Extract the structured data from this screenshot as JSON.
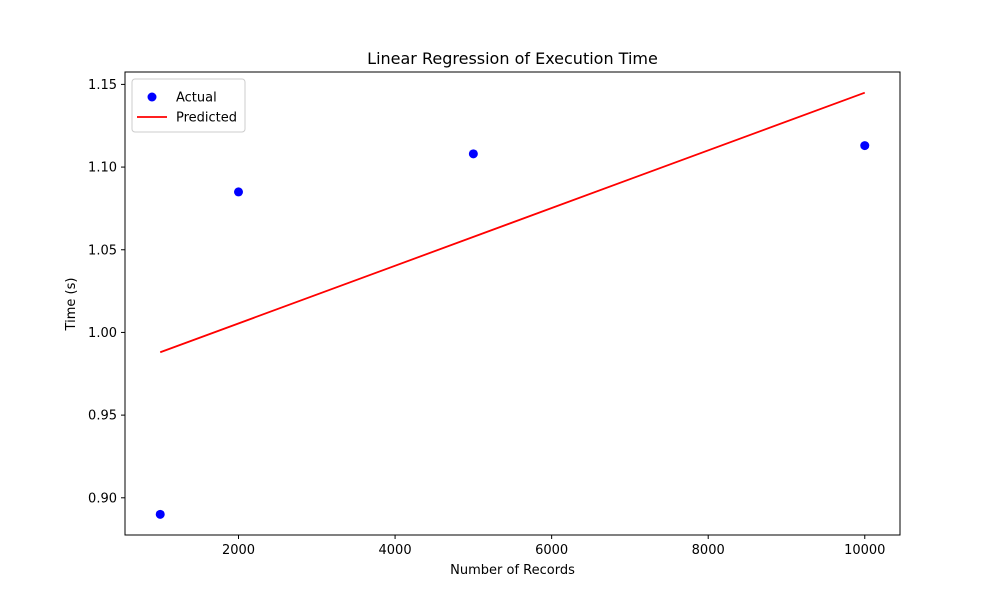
{
  "chart_data": {
    "type": "scatter",
    "title": "Linear Regression of Execution Time",
    "xlabel": "Number of Records",
    "ylabel": "Time (s)",
    "xlim": [
      550,
      10450
    ],
    "ylim": [
      0.8775,
      1.1575
    ],
    "x_ticks": [
      2000,
      4000,
      6000,
      8000,
      10000
    ],
    "x_tick_labels": [
      "2000",
      "4000",
      "6000",
      "8000",
      "10000"
    ],
    "y_ticks": [
      0.9,
      0.95,
      1.0,
      1.05,
      1.1,
      1.15
    ],
    "y_tick_labels": [
      "0.90",
      "0.95",
      "1.00",
      "1.05",
      "1.10",
      "1.15"
    ],
    "grid": false,
    "legend_position": "top-left",
    "series": [
      {
        "name": "Actual",
        "kind": "scatter",
        "color": "#0000ff",
        "x": [
          1000,
          2000,
          5000,
          10000
        ],
        "y": [
          0.89,
          1.085,
          1.108,
          1.113
        ]
      },
      {
        "name": "Predicted",
        "kind": "line",
        "color": "#ff0000",
        "x": [
          1000,
          10000
        ],
        "y": [
          0.988,
          1.145
        ]
      }
    ]
  }
}
